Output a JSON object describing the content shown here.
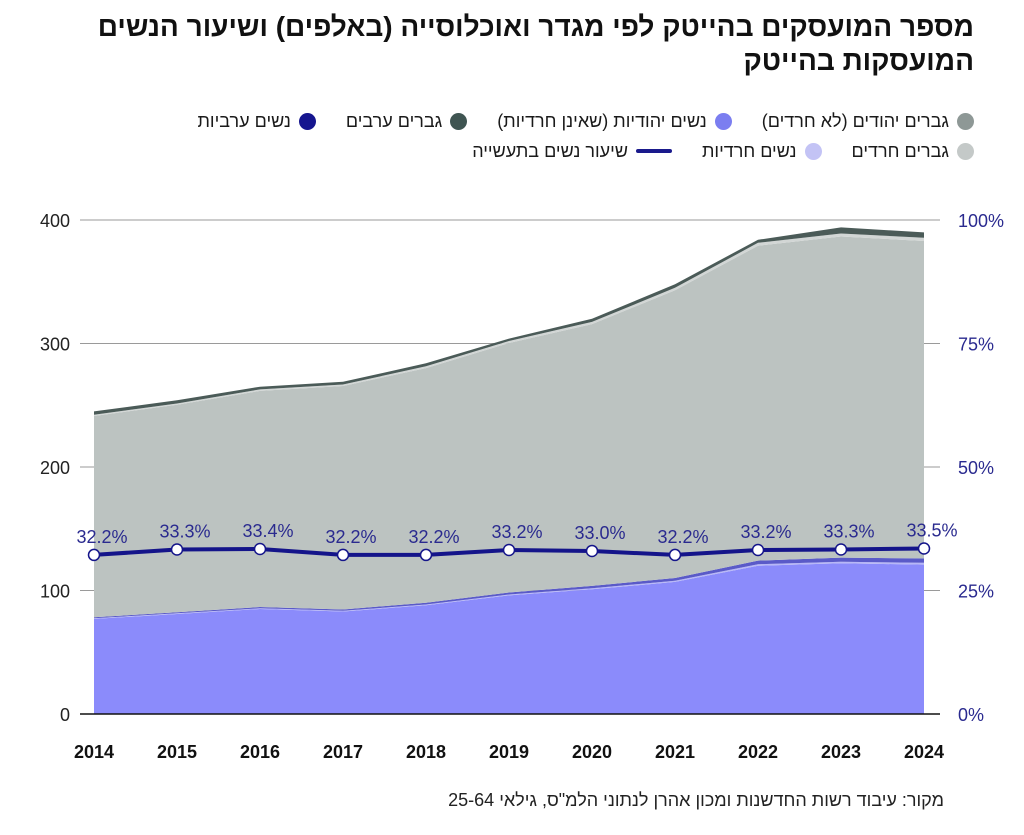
{
  "title": "מספר המועסקים בהייטק לפי מגדר ואוכלוסייה (באלפים) ושיעור הנשים המועסקות בהייטק",
  "legend": {
    "row1": [
      {
        "label": "גברים יהודים (לא חרדים)",
        "color": "#8e9896",
        "icon": "circle-icon"
      },
      {
        "label": "נשים יהודיות (שאינן חרדיות)",
        "color": "#7b7ef0",
        "icon": "circle-icon"
      },
      {
        "label": "גברים ערבים",
        "color": "#3f5552",
        "icon": "circle-icon"
      },
      {
        "label": "נשים ערביות",
        "color": "#16168f",
        "icon": "circle-icon"
      }
    ],
    "row2": [
      {
        "label": "גברים חרדים",
        "color": "#c4c9c8",
        "icon": "circle-icon"
      },
      {
        "label": "נשים חרדיות",
        "color": "#c3c3f5",
        "icon": "circle-icon"
      },
      {
        "label": "שיעור נשים בתעשייה",
        "color": "#1a1a8c",
        "icon": "line-icon"
      }
    ]
  },
  "source": "מקור: עיבוד רשות החדשנות ומכון אהרן לנתוני הלמ\"ס, גילאי 25-64",
  "chart_data": {
    "type": "area",
    "x": [
      "2014",
      "2015",
      "2016",
      "2017",
      "2018",
      "2019",
      "2020",
      "2021",
      "2022",
      "2023",
      "2024"
    ],
    "ylim": [
      0,
      400
    ],
    "yticks": [
      "0",
      "100",
      "200",
      "300",
      "400"
    ],
    "y2lim": [
      0,
      100
    ],
    "y2ticks": [
      "0%",
      "25%",
      "50%",
      "75%",
      "100%"
    ],
    "grid": true,
    "series_stacked": [
      {
        "key": "jewish_women",
        "values": [
          77,
          81,
          85,
          83,
          88,
          96,
          101,
          107,
          120,
          122,
          121
        ],
        "color": "#8b8bfb"
      },
      {
        "key": "haredi_women",
        "values": [
          0.5,
          0.5,
          0.6,
          0.6,
          0.7,
          0.8,
          0.8,
          0.9,
          1.2,
          1.3,
          1.4
        ],
        "color": "#b7b7f6"
      },
      {
        "key": "arab_women",
        "values": [
          0.8,
          0.9,
          1.0,
          1.0,
          1.4,
          1.6,
          1.9,
          2.2,
          3.0,
          3.3,
          3.6
        ],
        "color": "#5a5ac8"
      },
      {
        "key": "jewish_men",
        "values": [
          163,
          168,
          175,
          181,
          190,
          202,
          212,
          233,
          255,
          260,
          257
        ],
        "color": "#bcc3c1"
      },
      {
        "key": "haredi_men",
        "values": [
          1.0,
          1.0,
          1.2,
          1.2,
          1.4,
          1.6,
          1.8,
          2.0,
          2.3,
          2.5,
          2.6
        ],
        "color": "#d2d6d5"
      },
      {
        "key": "arab_men",
        "values": [
          2.7,
          2.6,
          2.2,
          2.2,
          2.5,
          2.0,
          2.5,
          2.9,
          2.5,
          4.9,
          4.4
        ],
        "color": "#4b5b58"
      }
    ],
    "share_series": {
      "values": [
        32.2,
        33.3,
        33.4,
        32.2,
        32.2,
        33.2,
        33.0,
        32.2,
        33.2,
        33.3,
        33.5
      ],
      "labels": [
        "32.2%",
        "33.3%",
        "33.4%",
        "32.2%",
        "32.2%",
        "33.2%",
        "33.0%",
        "32.2%",
        "33.2%",
        "33.3%",
        "33.5%"
      ],
      "color": "#14148a"
    }
  }
}
